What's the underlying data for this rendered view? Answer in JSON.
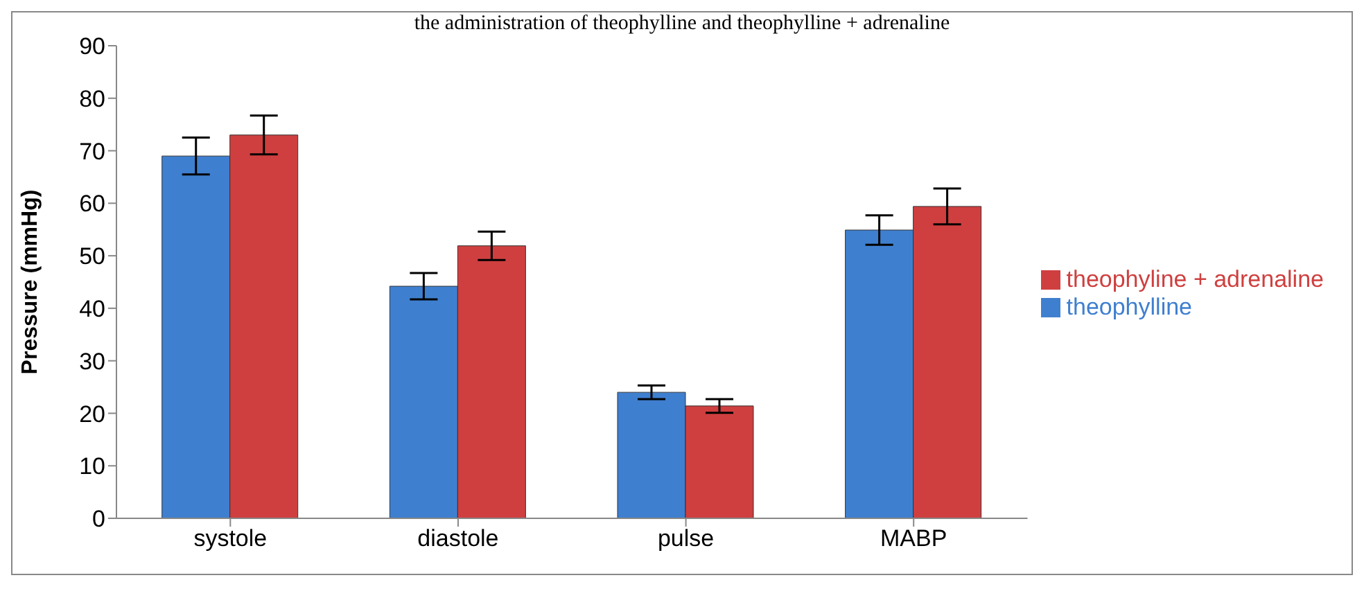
{
  "chart_data": {
    "type": "bar",
    "title": "the administration of theophylline and theophylline + adrenaline",
    "ylabel": "Pressure (mmHg)",
    "categories": [
      "systole",
      "diastole",
      "pulse",
      "MABP"
    ],
    "series": [
      {
        "name": "theophylline",
        "color": "#3f7fcf",
        "values": [
          69,
          44.2,
          24,
          54.9
        ],
        "errors": [
          3.5,
          2.5,
          1.3,
          2.8
        ]
      },
      {
        "name": "theophyline + adrenaline",
        "color": "#cf3f3f",
        "values": [
          73,
          51.9,
          21.4,
          59.4
        ],
        "errors": [
          3.7,
          2.7,
          1.3,
          3.4
        ]
      }
    ],
    "ylim": [
      0,
      90
    ],
    "yticks": [
      0,
      10,
      20,
      30,
      40,
      50,
      60,
      70,
      80,
      90
    ],
    "grid": false,
    "legend": "right"
  }
}
